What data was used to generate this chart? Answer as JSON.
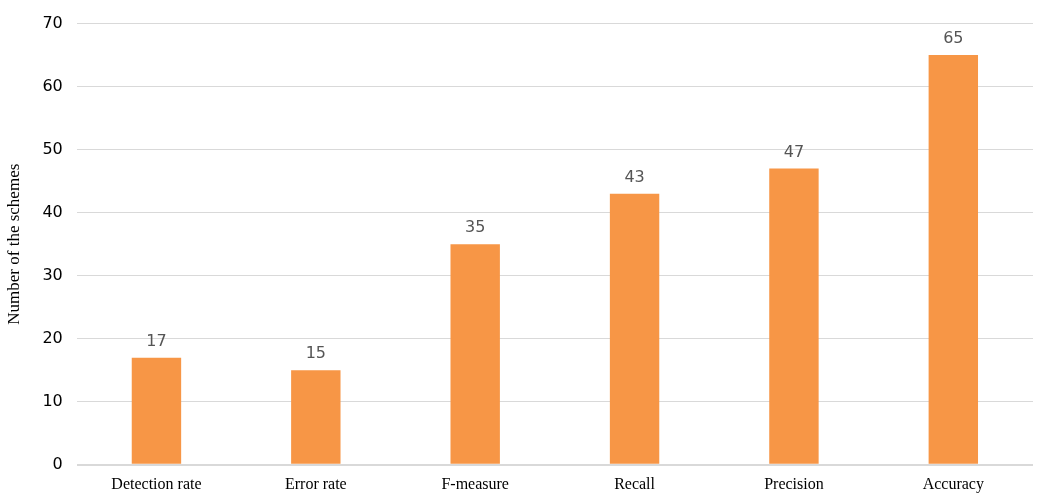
{
  "chart_data": {
    "type": "bar",
    "ylabel": "Number of the schemes",
    "categories": [
      "Detection rate",
      "Error rate",
      "F-measure",
      "Recall",
      "Precision",
      "Accuracy"
    ],
    "values": [
      17,
      15,
      35,
      43,
      47,
      65
    ],
    "color": "#f79646",
    "ylim": [
      0,
      70
    ],
    "yticks": [
      0,
      10,
      20,
      30,
      40,
      50,
      60,
      70
    ],
    "grid": "y",
    "data_labels": true,
    "legend": false
  }
}
